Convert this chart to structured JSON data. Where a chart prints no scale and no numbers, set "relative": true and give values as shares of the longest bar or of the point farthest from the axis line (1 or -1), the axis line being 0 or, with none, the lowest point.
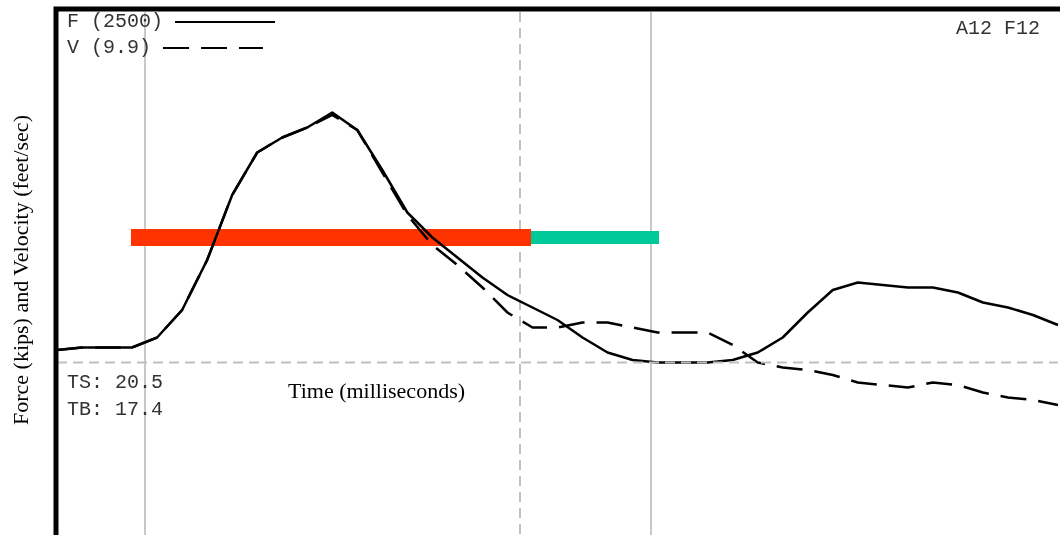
{
  "chart_data": {
    "type": "line",
    "relative": true,
    "ylabel": "Force (kips) and Velocity (feet/sec)",
    "xlabel": "Time (milliseconds)",
    "legend": "top left",
    "marker": "none",
    "ref_lines": [
      {
        "axis": "y",
        "value": 0,
        "color": "#c0c0c0",
        "line_style": "dashed"
      }
    ],
    "categories": [
      null,
      null,
      null,
      null,
      null,
      null,
      null,
      null,
      null,
      null,
      null,
      null,
      null,
      null,
      null,
      null,
      null,
      null,
      null,
      null,
      null,
      null,
      null,
      null,
      null,
      null,
      null,
      null,
      null,
      null,
      null,
      null,
      null,
      null,
      null,
      null,
      null,
      null,
      null,
      null,
      null
    ],
    "series": [
      {
        "name": "F (2500)",
        "color": "#000000",
        "line_style": "solid",
        "values": [
          0.05,
          0.06,
          0.06,
          0.06,
          0.1,
          0.21,
          0.41,
          0.67,
          0.84,
          0.9,
          0.94,
          1,
          0.93,
          0.77,
          0.6,
          0.5,
          0.42,
          0.34,
          0.27,
          0.22,
          0.17,
          0.1,
          0.04,
          0.01,
          0,
          0,
          0,
          0.01,
          0.04,
          0.1,
          0.2,
          0.29,
          0.32,
          0.31,
          0.3,
          0.3,
          0.28,
          0.24,
          0.22,
          0.19,
          0.15
        ]
      },
      {
        "name": "V (9.9)",
        "color": "#000000",
        "line_style": "dashed",
        "values": [
          0.05,
          0.06,
          0.06,
          0.06,
          0.1,
          0.21,
          0.41,
          0.67,
          0.84,
          0.9,
          0.94,
          0.99,
          0.93,
          0.76,
          0.59,
          0.47,
          0.39,
          0.3,
          0.2,
          0.14,
          0.14,
          0.16,
          0.16,
          0.14,
          0.12,
          0.12,
          0.12,
          0.07,
          0,
          -0.02,
          -0.03,
          -0.05,
          -0.08,
          -0.09,
          -0.1,
          -0.08,
          -0.09,
          -0.12,
          -0.14,
          -0.15,
          -0.17
        ]
      }
    ],
    "annotations": [
      "A12 F12",
      "TS: 20.5",
      "TB: 17.4"
    ]
  }
}
